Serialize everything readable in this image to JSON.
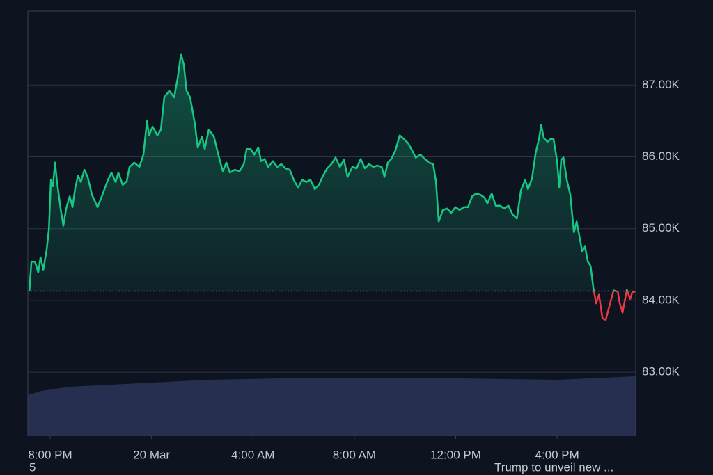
{
  "chart_data": {
    "type": "line",
    "x": [
      -0.82,
      -0.74,
      -0.6,
      -0.47,
      -0.38,
      -0.27,
      -0.14,
      -0.05,
      0.03,
      0.11,
      0.19,
      0.27,
      0.41,
      0.52,
      0.63,
      0.77,
      0.88,
      0.99,
      1.1,
      1.21,
      1.35,
      1.48,
      1.65,
      1.87,
      2.06,
      2.28,
      2.42,
      2.58,
      2.69,
      2.86,
      3.02,
      3.13,
      3.32,
      3.52,
      3.68,
      3.82,
      3.9,
      4.04,
      4.23,
      4.37,
      4.5,
      4.7,
      4.89,
      5.03,
      5.16,
      5.27,
      5.38,
      5.52,
      5.71,
      5.82,
      5.99,
      6.1,
      6.26,
      6.46,
      6.65,
      6.81,
      6.95,
      7.09,
      7.28,
      7.47,
      7.64,
      7.75,
      7.91,
      8.05,
      8.21,
      8.32,
      8.46,
      8.6,
      8.79,
      8.96,
      9.12,
      9.28,
      9.45,
      9.61,
      9.78,
      9.94,
      10.11,
      10.27,
      10.44,
      10.6,
      10.74,
      10.93,
      11.1,
      11.26,
      11.43,
      11.59,
      11.73,
      11.92,
      12.09,
      12.25,
      12.42,
      12.58,
      12.75,
      12.91,
      13.08,
      13.19,
      13.32,
      13.46,
      13.62,
      13.79,
      13.95,
      14.12,
      14.28,
      14.42,
      14.61,
      14.78,
      14.94,
      15.11,
      15.22,
      15.33,
      15.49,
      15.66,
      15.82,
      15.99,
      16.15,
      16.32,
      16.48,
      16.65,
      16.81,
      16.98,
      17.14,
      17.25,
      17.42,
      17.58,
      17.75,
      17.91,
      18.08,
      18.24,
      18.41,
      18.57,
      18.74,
      18.85,
      19.01,
      19.15,
      19.29,
      19.37,
      19.48,
      19.62,
      19.75,
      19.86,
      20.0,
      20.08,
      20.16,
      20.25,
      20.38,
      20.52,
      20.66,
      20.77,
      20.88,
      20.99,
      21.1,
      21.21,
      21.32,
      21.43,
      21.54,
      21.65,
      21.79,
      21.92,
      22.09,
      22.23,
      22.39,
      22.47,
      22.58,
      22.75,
      22.88,
      22.97,
      23.08
    ],
    "series": [
      {
        "values": [
          84130,
          84540,
          84540,
          84390,
          84600,
          84430,
          84700,
          84990,
          85680,
          85590,
          85920,
          85650,
          85280,
          85040,
          85280,
          85450,
          85300,
          85570,
          85740,
          85650,
          85820,
          85720,
          85470,
          85300,
          85470,
          85680,
          85780,
          85650,
          85780,
          85610,
          85660,
          85860,
          85920,
          85860,
          86030,
          86500,
          86300,
          86420,
          86300,
          86380,
          86830,
          86920,
          86830,
          87100,
          87430,
          87290,
          86920,
          86830,
          86460,
          86130,
          86280,
          86110,
          86380,
          86280,
          86010,
          85800,
          85920,
          85780,
          85820,
          85800,
          85900,
          86110,
          86110,
          86030,
          86130,
          85940,
          85970,
          85860,
          85940,
          85860,
          85900,
          85840,
          85820,
          85680,
          85570,
          85680,
          85650,
          85680,
          85550,
          85610,
          85720,
          85840,
          85900,
          85990,
          85860,
          85960,
          85720,
          85860,
          85840,
          85970,
          85840,
          85900,
          85860,
          85880,
          85860,
          85720,
          85920,
          85970,
          86090,
          86300,
          86250,
          86190,
          86090,
          85990,
          86030,
          85970,
          85920,
          85900,
          85660,
          85100,
          85260,
          85280,
          85220,
          85300,
          85260,
          85300,
          85300,
          85450,
          85490,
          85470,
          85430,
          85350,
          85490,
          85320,
          85320,
          85280,
          85320,
          85200,
          85140,
          85530,
          85680,
          85550,
          85700,
          86050,
          86260,
          86440,
          86260,
          86210,
          86250,
          86250,
          85940,
          85570,
          85960,
          85990,
          85680,
          85470,
          84950,
          85100,
          84890,
          84680,
          84750,
          84540,
          84480,
          84170,
          83960,
          84080,
          83750,
          83730,
          83960,
          84140,
          84120,
          83960,
          83830,
          84150,
          84020,
          84120,
          84120
        ]
      }
    ],
    "baseline": 84130,
    "up_color": "#16c784",
    "down_color": "#ea3943",
    "xlim": [
      -0.88,
      23.1
    ],
    "xticks": [
      {
        "value": 0,
        "label": "8:00 PM"
      },
      {
        "value": 4,
        "label": "20 Mar"
      },
      {
        "value": 8,
        "label": "4:00 AM"
      },
      {
        "value": 12,
        "label": "8:00 AM"
      },
      {
        "value": 16,
        "label": "12:00 PM"
      },
      {
        "value": 20,
        "label": "4:00 PM"
      }
    ],
    "ylim": [
      82110,
      88030
    ],
    "yticks": [
      {
        "value": 83000,
        "label": "83.00K"
      },
      {
        "value": 84000,
        "label": "84.00K"
      },
      {
        "value": 85000,
        "label": "85.00K"
      },
      {
        "value": 86000,
        "label": "86.00K"
      },
      {
        "value": 87000,
        "label": "87.00K"
      }
    ],
    "grid": true,
    "annotations": [
      "5",
      "Trump to unveil new ..."
    ]
  }
}
